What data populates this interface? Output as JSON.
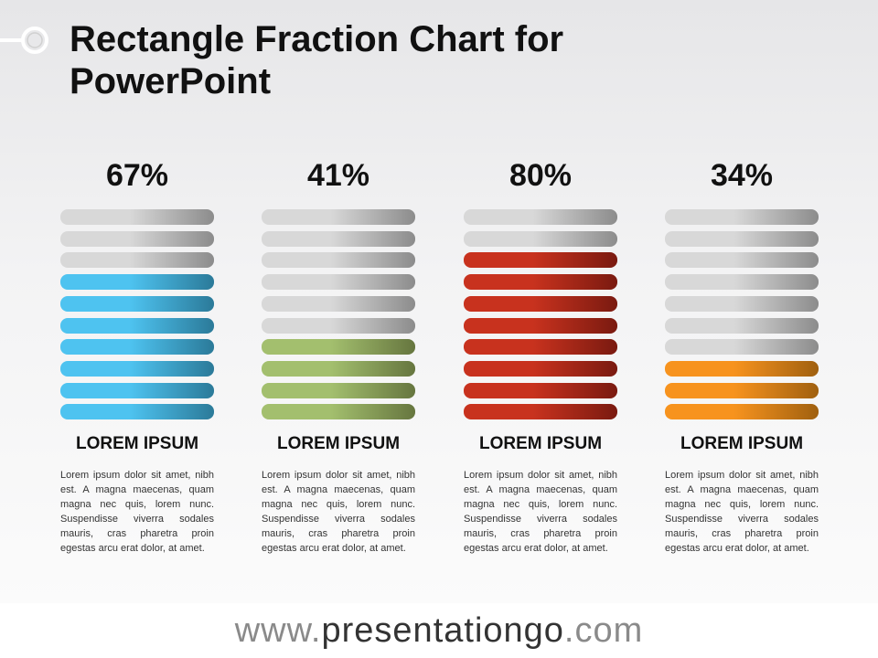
{
  "title": "Rectangle Fraction Chart for PowerPoint",
  "chart_data": {
    "type": "bar",
    "bars_per_column": 10,
    "series": [
      {
        "value": 67,
        "display": "67%",
        "filled_bars": 7,
        "label": "LOREM IPSUM",
        "description": "Lorem ipsum dolor sit amet, nibh est. A magna maecenas, quam magna nec quis, lorem nunc. Suspendisse viverra sodales mauris, cras pharetra proin egestas arcu erat dolor, at amet.",
        "color_light": "#4ec3f0",
        "color_dark": "#2b7a99"
      },
      {
        "value": 41,
        "display": "41%",
        "filled_bars": 4,
        "label": "LOREM IPSUM",
        "description": "Lorem ipsum dolor sit amet, nibh est. A magna maecenas, quam magna nec quis, lorem nunc. Suspendisse viverra sodales mauris, cras pharetra proin egestas arcu erat dolor, at amet.",
        "color_light": "#a3bf6e",
        "color_dark": "#66763f"
      },
      {
        "value": 80,
        "display": "80%",
        "filled_bars": 8,
        "label": "LOREM IPSUM",
        "description": "Lorem ipsum dolor sit amet, nibh est. A magna maecenas, quam magna nec quis, lorem nunc. Suspendisse viverra sodales mauris, cras pharetra proin egestas arcu erat dolor, at amet.",
        "color_light": "#c8321e",
        "color_dark": "#7a1a10"
      },
      {
        "value": 34,
        "display": "34%",
        "filled_bars": 3,
        "label": "LOREM IPSUM",
        "description": "Lorem ipsum dolor sit amet, nibh est. A magna maecenas, quam magna nec quis, lorem nunc. Suspendisse viverra sodales mauris, cras pharetra proin egestas arcu erat dolor, at amet.",
        "color_light": "#f7931e",
        "color_dark": "#a0600f"
      }
    ]
  },
  "footer": {
    "prefix": "www.",
    "brand": "presentationgo",
    "suffix": ".com"
  }
}
